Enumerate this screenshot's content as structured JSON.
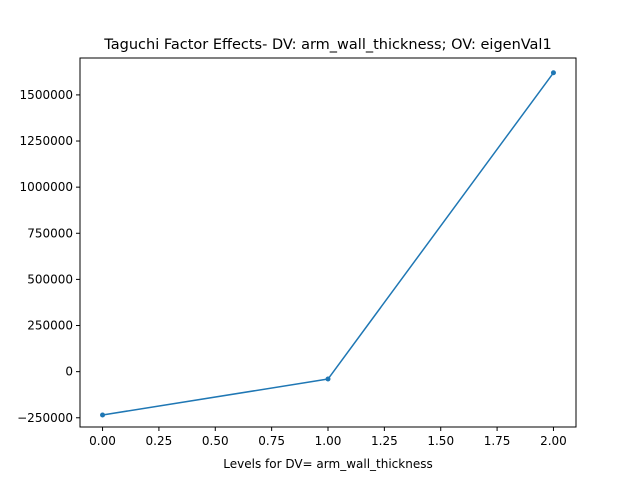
{
  "chart_data": {
    "type": "line",
    "title": "Taguchi Factor Effects- DV: arm_wall_thickness; OV: eigenVal1",
    "xlabel": "Levels for DV= arm_wall_thickness",
    "ylabel": "",
    "xlim": [
      -0.1,
      2.1
    ],
    "ylim": [
      -300000,
      1700000
    ],
    "x_ticks": [
      0.0,
      0.25,
      0.5,
      0.75,
      1.0,
      1.25,
      1.5,
      1.75,
      2.0
    ],
    "x_tick_labels": [
      "0.00",
      "0.25",
      "0.50",
      "0.75",
      "1.00",
      "1.25",
      "1.50",
      "1.75",
      "2.00"
    ],
    "y_ticks": [
      -250000,
      0,
      250000,
      500000,
      750000,
      1000000,
      1250000,
      1500000
    ],
    "y_tick_labels": [
      "−250000",
      "0",
      "250000",
      "500000",
      "750000",
      "1000000",
      "1250000",
      "1500000"
    ],
    "grid": false,
    "legend": "none",
    "series": [
      {
        "color": "#1f77b4",
        "marker": "circle",
        "x": [
          0.0,
          1.0,
          2.0
        ],
        "y": [
          -235000,
          -40000,
          1620000
        ]
      }
    ]
  }
}
